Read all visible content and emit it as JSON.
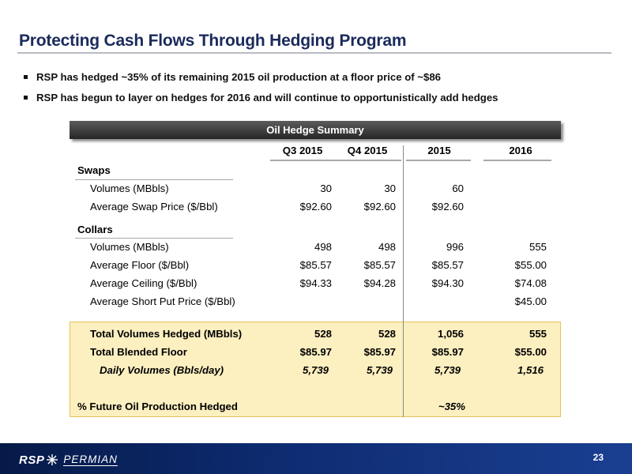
{
  "title": "Protecting Cash Flows Through Hedging Program",
  "bullets": [
    "RSP has hedged ~35% of its remaining 2015 oil production at a floor price of ~$86",
    "RSP has begun to layer on hedges for 2016 and will continue to opportunistically add hedges"
  ],
  "table": {
    "banner": "Oil Hedge Summary",
    "columns": [
      "Q3 2015",
      "Q4 2015",
      "2015",
      "2016"
    ],
    "sections": {
      "swaps": "Swaps",
      "collars": "Collars"
    },
    "rows": {
      "swap_volumes": {
        "label": "Volumes (MBbls)",
        "values": [
          "30",
          "30",
          "60",
          ""
        ]
      },
      "swap_price": {
        "label": "Average Swap Price ($/Bbl)",
        "values": [
          "$92.60",
          "$92.60",
          "$92.60",
          ""
        ]
      },
      "collar_volumes": {
        "label": "Volumes (MBbls)",
        "values": [
          "498",
          "498",
          "996",
          "555"
        ]
      },
      "avg_floor": {
        "label": "Average Floor ($/Bbl)",
        "values": [
          "$85.57",
          "$85.57",
          "$85.57",
          "$55.00"
        ]
      },
      "avg_ceiling": {
        "label": "Average Ceiling ($/Bbl)",
        "values": [
          "$94.33",
          "$94.28",
          "$94.30",
          "$74.08"
        ]
      },
      "short_put": {
        "label": "Average Short Put Price ($/Bbl)",
        "values": [
          "",
          "",
          "",
          "$45.00"
        ]
      },
      "total_volumes": {
        "label": "Total Volumes Hedged (MBbls)",
        "values": [
          "528",
          "528",
          "1,056",
          "555"
        ]
      },
      "blended_floor": {
        "label": "Total Blended Floor",
        "values": [
          "$85.97",
          "$85.97",
          "$85.97",
          "$55.00"
        ]
      },
      "daily_volumes": {
        "label": "Daily Volumes (Bbls/day)",
        "values": [
          "5,739",
          "5,739",
          "5,739",
          "1,516"
        ]
      },
      "pct_hedged": {
        "label": "% Future Oil Production Hedged",
        "values": [
          "",
          "",
          "~35%",
          ""
        ]
      }
    }
  },
  "footer": {
    "logo_rsp": "RSP",
    "logo_permian": "PERMIAN",
    "page_number": "23"
  },
  "colors": {
    "title": "#1a2a5c",
    "summary_fill": "#fcefc0",
    "summary_border": "#e6c35a",
    "footer": "#0d2a6e"
  }
}
